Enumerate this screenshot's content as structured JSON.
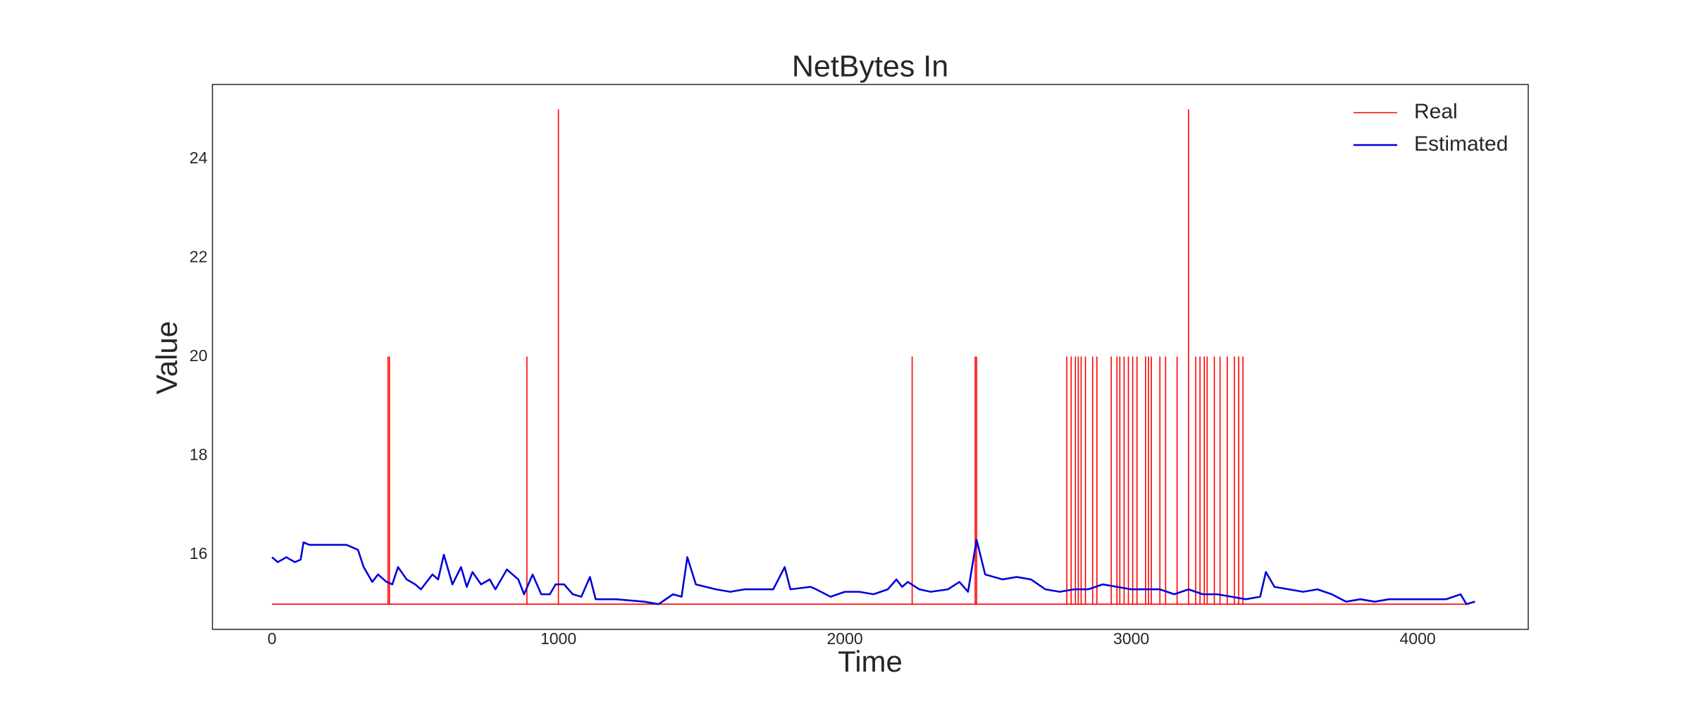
{
  "chart_data": {
    "type": "line",
    "title": "NetBytes In",
    "x_label": "Time",
    "y_label": "Value",
    "xlim": [
      -208,
      4386
    ],
    "ylim": [
      14.49,
      25.51
    ],
    "xticks": [
      0,
      1000,
      2000,
      3000,
      4000
    ],
    "yticks": [
      16,
      18,
      20,
      22,
      24
    ],
    "grid": false,
    "legend": "upper right",
    "series": [
      {
        "name": "Real",
        "color": "#ff0000",
        "x": [
          0,
          405,
          405,
          405,
          410,
          410,
          410,
          890,
          890,
          890,
          1000,
          1000,
          1000,
          2235,
          2235,
          2235,
          2455,
          2455,
          2455,
          2460,
          2460,
          2460,
          2775,
          2775,
          2775,
          2790,
          2790,
          2790,
          2805,
          2805,
          2805,
          2815,
          2815,
          2815,
          2825,
          2825,
          2825,
          2840,
          2840,
          2840,
          2865,
          2865,
          2865,
          2880,
          2880,
          2880,
          2930,
          2930,
          2930,
          2950,
          2950,
          2950,
          2960,
          2960,
          2960,
          2975,
          2975,
          2975,
          2990,
          2990,
          2990,
          3005,
          3005,
          3005,
          3020,
          3020,
          3020,
          3050,
          3050,
          3050,
          3060,
          3060,
          3060,
          3070,
          3070,
          3070,
          3100,
          3100,
          3100,
          3120,
          3120,
          3120,
          3160,
          3160,
          3160,
          3200,
          3200,
          3200,
          3225,
          3225,
          3225,
          3240,
          3240,
          3240,
          3255,
          3255,
          3255,
          3265,
          3265,
          3265,
          3290,
          3290,
          3290,
          3310,
          3310,
          3310,
          3335,
          3335,
          3335,
          3360,
          3360,
          3360,
          3375,
          3375,
          3375,
          3390,
          3390,
          3390,
          4180
        ],
        "values": [
          15,
          15,
          20,
          15,
          15,
          20,
          15,
          15,
          20,
          15,
          15,
          25,
          15,
          15,
          20,
          15,
          15,
          20,
          15,
          15,
          20,
          15,
          15,
          20,
          15,
          15,
          20,
          15,
          15,
          20,
          15,
          15,
          20,
          15,
          15,
          20,
          15,
          15,
          20,
          15,
          15,
          20,
          15,
          15,
          20,
          15,
          15,
          20,
          15,
          15,
          20,
          15,
          15,
          20,
          15,
          15,
          20,
          15,
          15,
          20,
          15,
          15,
          20,
          15,
          15,
          20,
          15,
          15,
          20,
          15,
          15,
          20,
          15,
          15,
          20,
          15,
          15,
          20,
          15,
          15,
          20,
          15,
          15,
          20,
          15,
          15,
          25,
          15,
          15,
          20,
          15,
          15,
          20,
          15,
          15,
          20,
          15,
          15,
          20,
          15,
          15,
          20,
          15,
          15,
          20,
          15,
          15,
          20,
          15,
          15,
          20,
          15,
          15,
          20,
          15,
          15,
          20,
          15,
          15
        ]
      },
      {
        "name": "Estimated",
        "color": "#0000dd",
        "x": [
          0,
          20,
          50,
          80,
          100,
          110,
          130,
          200,
          260,
          300,
          320,
          350,
          370,
          400,
          420,
          440,
          470,
          500,
          520,
          560,
          580,
          600,
          630,
          660,
          680,
          700,
          730,
          760,
          780,
          820,
          860,
          880,
          910,
          940,
          970,
          990,
          1020,
          1050,
          1080,
          1110,
          1130,
          1200,
          1300,
          1350,
          1400,
          1430,
          1450,
          1480,
          1550,
          1600,
          1650,
          1700,
          1750,
          1790,
          1810,
          1880,
          1900,
          1950,
          2000,
          2050,
          2100,
          2150,
          2180,
          2200,
          2220,
          2260,
          2300,
          2360,
          2400,
          2430,
          2460,
          2490,
          2550,
          2600,
          2650,
          2700,
          2750,
          2800,
          2850,
          2900,
          2950,
          3000,
          3050,
          3100,
          3150,
          3200,
          3250,
          3300,
          3350,
          3400,
          3450,
          3470,
          3500,
          3550,
          3600,
          3650,
          3700,
          3750,
          3800,
          3850,
          3900,
          3950,
          4000,
          4050,
          4100,
          4150,
          4170,
          4200
        ],
        "values": [
          15.95,
          15.85,
          15.95,
          15.85,
          15.9,
          16.25,
          16.2,
          16.2,
          16.2,
          16.1,
          15.75,
          15.45,
          15.6,
          15.45,
          15.4,
          15.75,
          15.5,
          15.4,
          15.3,
          15.6,
          15.5,
          16.0,
          15.4,
          15.75,
          15.35,
          15.65,
          15.4,
          15.5,
          15.3,
          15.7,
          15.5,
          15.2,
          15.6,
          15.2,
          15.2,
          15.4,
          15.4,
          15.2,
          15.15,
          15.55,
          15.1,
          15.1,
          15.05,
          15.0,
          15.2,
          15.15,
          15.95,
          15.4,
          15.3,
          15.25,
          15.3,
          15.3,
          15.3,
          15.75,
          15.3,
          15.35,
          15.3,
          15.15,
          15.25,
          15.25,
          15.2,
          15.3,
          15.5,
          15.35,
          15.45,
          15.3,
          15.25,
          15.3,
          15.45,
          15.25,
          16.3,
          15.6,
          15.5,
          15.55,
          15.5,
          15.3,
          15.25,
          15.3,
          15.3,
          15.4,
          15.35,
          15.3,
          15.3,
          15.3,
          15.2,
          15.3,
          15.2,
          15.2,
          15.15,
          15.1,
          15.15,
          15.65,
          15.35,
          15.3,
          15.25,
          15.3,
          15.2,
          15.05,
          15.1,
          15.05,
          15.1,
          15.1,
          15.1,
          15.1,
          15.1,
          15.2,
          15.0,
          15.05
        ]
      }
    ]
  }
}
